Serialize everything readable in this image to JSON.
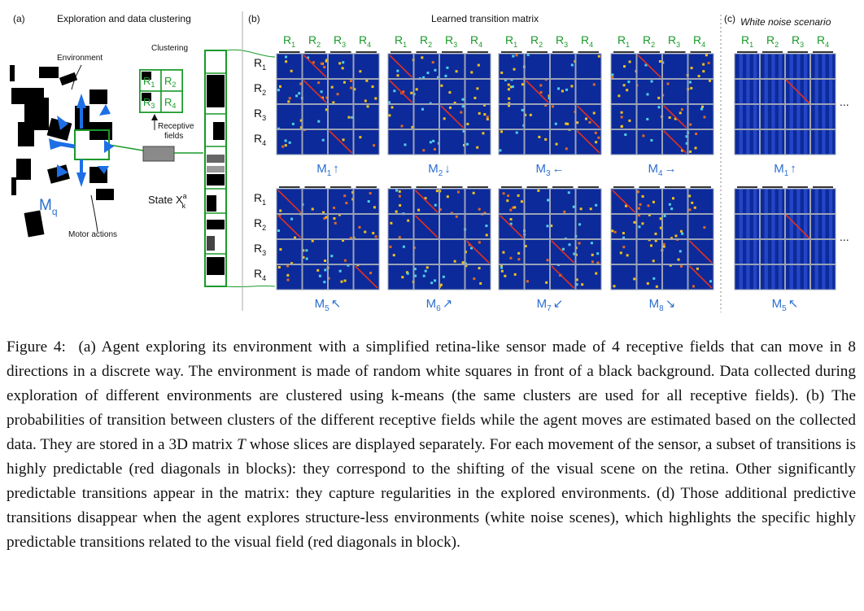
{
  "panels": {
    "a": {
      "label": "(a)",
      "title": "Exploration and data clustering"
    },
    "b": {
      "label": "(b)",
      "title": "Learned transition matrix"
    },
    "c": {
      "label": "(c)",
      "title": "White noise scenario"
    }
  },
  "diagram_labels": {
    "environment": "Environment",
    "clustering": "Clustering",
    "receptive_fields": [
      "Receptive",
      "fields"
    ],
    "state": "State X",
    "state_sup": "a",
    "state_sub": "k",
    "motor_actions": "Motor actions",
    "mq": "M",
    "mq_sub": "q",
    "ellipsis": "..."
  },
  "cluster_labels": [
    "R1",
    "R2",
    "R3",
    "R4"
  ],
  "row_labels": [
    "R1",
    "R2",
    "R3",
    "R4"
  ],
  "movements_top": [
    {
      "name": "M",
      "sub": "1",
      "arrow": "↑"
    },
    {
      "name": "M",
      "sub": "2",
      "arrow": "↓"
    },
    {
      "name": "M",
      "sub": "3",
      "arrow": "←"
    },
    {
      "name": "M",
      "sub": "4",
      "arrow": "→"
    }
  ],
  "movements_bottom": [
    {
      "name": "M",
      "sub": "5",
      "arrow": "↖"
    },
    {
      "name": "M",
      "sub": "6",
      "arrow": "↗"
    },
    {
      "name": "M",
      "sub": "7",
      "arrow": "↙"
    },
    {
      "name": "M",
      "sub": "8",
      "arrow": "↘"
    }
  ],
  "noise_movements": [
    {
      "name": "M",
      "sub": "1",
      "arrow": "↑"
    },
    {
      "name": "M",
      "sub": "5",
      "arrow": "↖"
    }
  ],
  "colors": {
    "matrix_bg": "#0c2a9a",
    "grid": "#9aa3b5",
    "diagonal": "#e03020",
    "label_green": "#1a9a2a",
    "label_blue": "#2a6fd1",
    "arrow_blue": "#1e6fe6"
  },
  "caption": {
    "part1": "Figure 4:  (a) Agent exploring its environment with a simplified retina-like sensor made of 4 receptive fields that can move in 8 directions in a discrete way. The environment is made of random white squares in front of a black background. Data collected during exploration of different environments are clustered using k-means (the same clusters are used for all receptive fields). (b) The probabilities of transition between clusters of the different receptive fields while the agent moves are estimated based on the collected data. They are stored in a 3D matrix ",
    "matrix_symbol": "T",
    "part2": " whose slices are displayed separately. For each movement of the sensor, a subset of transitions is highly predictable (red diagonals in blocks): they correspond to the shifting of the visual scene on the retina. Other significantly predictable transitions appear in the matrix: they capture regularities in the explored environments. (d) Those additional predictive transitions disappear when the agent explores structure-less environments (white noise scenes), which highlights the specific highly predictable transitions related to the visual field (red diagonals in block)."
  }
}
